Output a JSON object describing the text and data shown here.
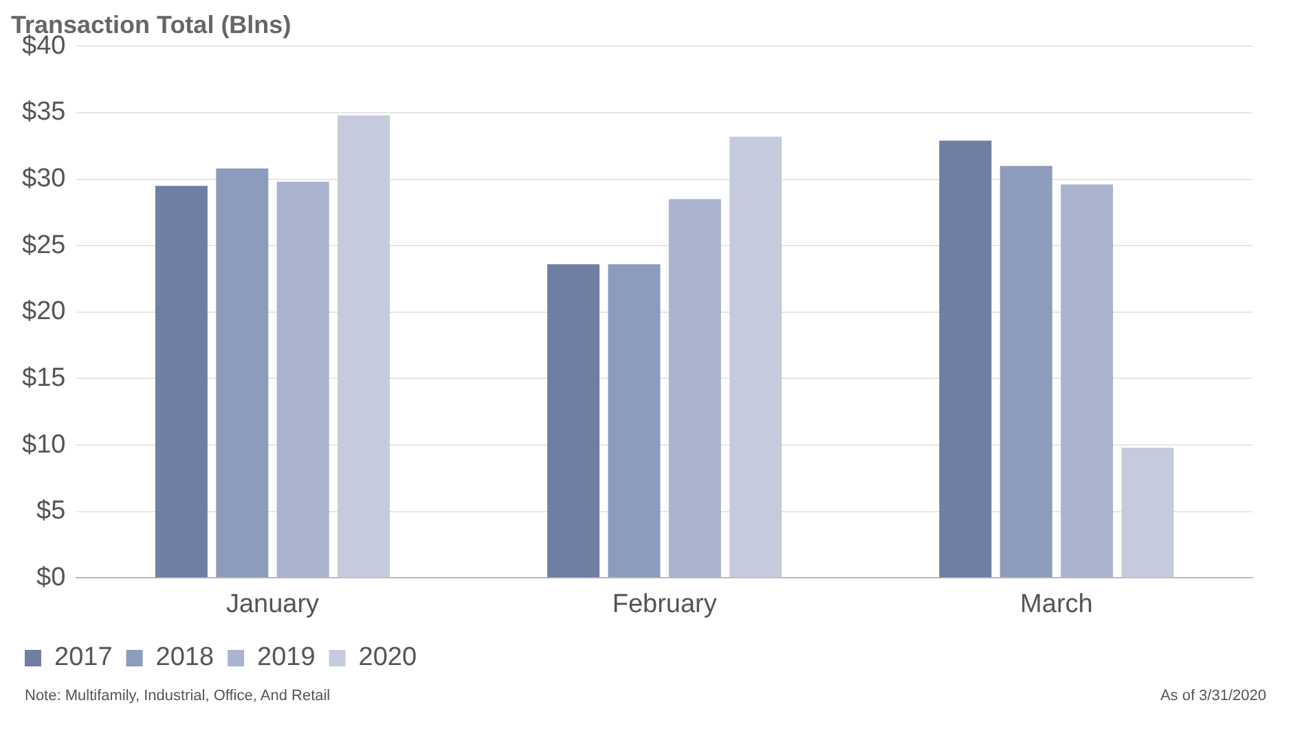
{
  "chart_data": {
    "type": "bar",
    "title": "Transaction Total (Blns)",
    "categories": [
      "January",
      "February",
      "March"
    ],
    "series": [
      {
        "name": "2017",
        "color": "#6f7fa3",
        "values": [
          29.5,
          23.6,
          32.9
        ]
      },
      {
        "name": "2018",
        "color": "#8d9cbc",
        "values": [
          30.8,
          23.6,
          31.0
        ]
      },
      {
        "name": "2019",
        "color": "#aab4cf",
        "values": [
          29.8,
          28.5,
          29.6
        ]
      },
      {
        "name": "2020",
        "color": "#c5cbdc",
        "values": [
          34.8,
          33.2,
          9.8
        ]
      }
    ],
    "ylim": [
      0,
      40
    ],
    "yticks": [
      {
        "value": 0,
        "label": "$0"
      },
      {
        "value": 5,
        "label": "$5"
      },
      {
        "value": 10,
        "label": "$10"
      },
      {
        "value": 15,
        "label": "$15"
      },
      {
        "value": 20,
        "label": "$20"
      },
      {
        "value": 25,
        "label": "$25"
      },
      {
        "value": 30,
        "label": "$30"
      },
      {
        "value": 35,
        "label": "$35"
      },
      {
        "value": 40,
        "label": "$40"
      }
    ],
    "grid": "y",
    "legend": "bottom left",
    "annotations": [
      "Note: Multifamily, Industrial, Office, And Retail",
      "As of 3/31/2020"
    ]
  }
}
